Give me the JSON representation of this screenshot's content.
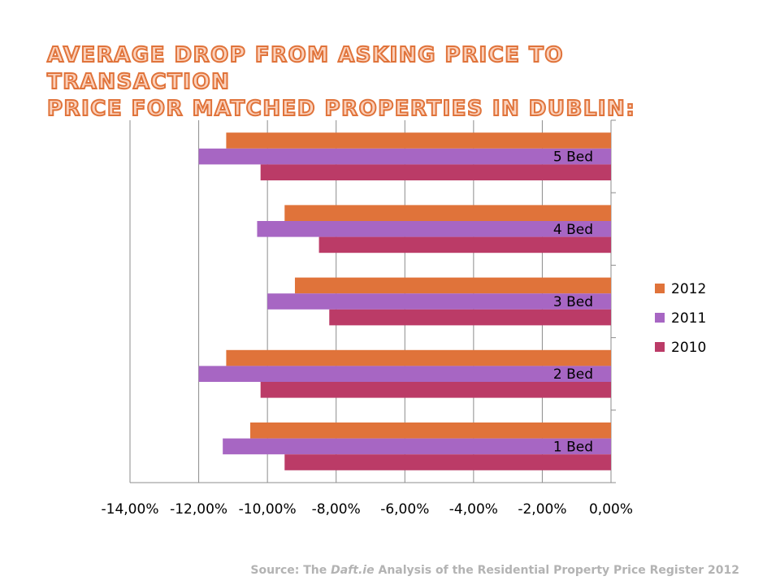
{
  "title": {
    "line1": "AVERAGE DROP FROM ASKING PRICE TO TRANSACTION",
    "line2": "PRICE FOR MATCHED PROPERTIES IN DUBLIN:"
  },
  "source": {
    "prefix": "Source: The ",
    "italic": "Daft.ie",
    "suffix": " Analysis of the Residential Property Price Register 2012"
  },
  "chart_data": {
    "type": "bar",
    "orientation": "horizontal",
    "categories": [
      "1 Bed",
      "2 Bed",
      "3 Bed",
      "4 Bed",
      "5 Bed"
    ],
    "series": [
      {
        "name": "2012",
        "color": "#e0733a",
        "values": [
          -10.5,
          -11.2,
          -9.2,
          -9.5,
          -11.2
        ]
      },
      {
        "name": "2011",
        "color": "#a766c3",
        "values": [
          -11.3,
          -12.0,
          -10.0,
          -10.3,
          -12.0
        ]
      },
      {
        "name": "2010",
        "color": "#bb3b67",
        "values": [
          -9.5,
          -10.2,
          -8.2,
          -8.5,
          -10.2
        ]
      }
    ],
    "xlim": [
      -14,
      0
    ],
    "xticks": [
      -14,
      -12,
      -10,
      -8,
      -6,
      -4,
      -2,
      0
    ],
    "xtick_labels": [
      "-14,00%",
      "-12,00%",
      "-10,00%",
      "-8,00%",
      "-6,00%",
      "-4,00%",
      "-2,00%",
      "0,00%"
    ],
    "grid": "vertical",
    "legend": "right",
    "xlabel": "",
    "ylabel": ""
  }
}
